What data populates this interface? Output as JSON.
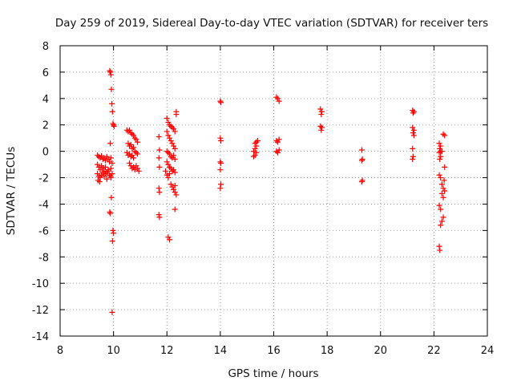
{
  "chart_data": {
    "type": "scatter",
    "title": "Day 259 of 2019, Sidereal Day-to-day VTEC variation (SDTVAR) for receiver ters",
    "xlabel": "GPS time / hours",
    "ylabel": "SDTVAR / TECUs",
    "xlim": [
      8,
      24
    ],
    "ylim": [
      -14,
      8
    ],
    "xticks": [
      8,
      10,
      12,
      14,
      16,
      18,
      20,
      22,
      24
    ],
    "yticks": [
      -14,
      -12,
      -10,
      -8,
      -6,
      -4,
      -2,
      0,
      2,
      4,
      6,
      8
    ],
    "grid": true,
    "marker": "+",
    "color": "#ff0000",
    "series": [
      {
        "name": "SDTVAR",
        "points": [
          [
            9.4,
            -0.3
          ],
          [
            9.45,
            -0.4
          ],
          [
            9.5,
            -0.5
          ],
          [
            9.55,
            -0.35
          ],
          [
            9.6,
            -0.6
          ],
          [
            9.65,
            -0.5
          ],
          [
            9.7,
            -0.7
          ],
          [
            9.75,
            -0.4
          ],
          [
            9.8,
            -0.6
          ],
          [
            9.85,
            -0.8
          ],
          [
            9.9,
            -0.5
          ],
          [
            9.95,
            -0.9
          ],
          [
            9.4,
            -1.0
          ],
          [
            9.45,
            -1.2
          ],
          [
            9.5,
            -1.4
          ],
          [
            9.55,
            -1.1
          ],
          [
            9.6,
            -1.3
          ],
          [
            9.65,
            -1.5
          ],
          [
            9.7,
            -1.2
          ],
          [
            9.75,
            -1.6
          ],
          [
            9.8,
            -1.4
          ],
          [
            9.85,
            -1.8
          ],
          [
            9.9,
            -1.3
          ],
          [
            9.95,
            -1.7
          ],
          [
            9.4,
            -1.7
          ],
          [
            9.45,
            -1.9
          ],
          [
            9.5,
            -2.0
          ],
          [
            9.55,
            -1.8
          ],
          [
            9.6,
            -1.6
          ],
          [
            9.65,
            -1.9
          ],
          [
            9.7,
            -1.7
          ],
          [
            9.75,
            -2.1
          ],
          [
            9.8,
            -1.5
          ],
          [
            9.9,
            -1.9
          ],
          [
            9.42,
            -2.2
          ],
          [
            9.48,
            -2.3
          ],
          [
            9.86,
            6.1
          ],
          [
            9.88,
            6.0
          ],
          [
            9.9,
            5.8
          ],
          [
            9.92,
            4.7
          ],
          [
            9.94,
            3.6
          ],
          [
            9.96,
            3.0
          ],
          [
            9.98,
            2.1
          ],
          [
            10.0,
            2.0
          ],
          [
            10.02,
            1.9
          ],
          [
            9.88,
            0.6
          ],
          [
            9.9,
            -2.0
          ],
          [
            9.92,
            -3.5
          ],
          [
            9.86,
            -4.6
          ],
          [
            9.88,
            -4.7
          ],
          [
            9.98,
            -6.0
          ],
          [
            10.0,
            -6.2
          ],
          [
            9.96,
            -6.8
          ],
          [
            9.95,
            -12.2
          ],
          [
            10.5,
            1.6
          ],
          [
            10.55,
            1.5
          ],
          [
            10.6,
            1.6
          ],
          [
            10.65,
            1.4
          ],
          [
            10.7,
            1.3
          ],
          [
            10.75,
            1.2
          ],
          [
            10.8,
            1.0
          ],
          [
            10.85,
            0.9
          ],
          [
            10.9,
            0.7
          ],
          [
            10.55,
            0.6
          ],
          [
            10.6,
            0.4
          ],
          [
            10.65,
            0.5
          ],
          [
            10.7,
            0.2
          ],
          [
            10.75,
            0.3
          ],
          [
            10.8,
            0.0
          ],
          [
            10.85,
            -0.1
          ],
          [
            10.9,
            -0.2
          ],
          [
            10.5,
            -0.1
          ],
          [
            10.55,
            -0.3
          ],
          [
            10.6,
            -0.2
          ],
          [
            10.65,
            -0.4
          ],
          [
            10.7,
            -0.3
          ],
          [
            10.75,
            -0.5
          ],
          [
            10.6,
            -0.9
          ],
          [
            10.65,
            -1.1
          ],
          [
            10.7,
            -1.3
          ],
          [
            10.75,
            -1.2
          ],
          [
            10.8,
            -1.4
          ],
          [
            10.85,
            -1.1
          ],
          [
            10.9,
            -1.3
          ],
          [
            10.95,
            -1.5
          ],
          [
            11.7,
            1.1
          ],
          [
            11.72,
            0.1
          ],
          [
            11.7,
            -0.5
          ],
          [
            11.72,
            -1.2
          ],
          [
            11.7,
            -2.8
          ],
          [
            11.72,
            -3.1
          ],
          [
            11.7,
            -4.8
          ],
          [
            11.72,
            -5.0
          ],
          [
            12.0,
            2.5
          ],
          [
            12.05,
            2.2
          ],
          [
            12.1,
            2.0
          ],
          [
            12.15,
            1.9
          ],
          [
            12.2,
            1.8
          ],
          [
            12.25,
            1.7
          ],
          [
            12.3,
            1.5
          ],
          [
            12.0,
            1.5
          ],
          [
            12.05,
            1.2
          ],
          [
            12.1,
            1.0
          ],
          [
            12.15,
            0.8
          ],
          [
            12.2,
            0.6
          ],
          [
            12.25,
            0.4
          ],
          [
            12.3,
            0.2
          ],
          [
            12.0,
            0.0
          ],
          [
            12.05,
            -0.1
          ],
          [
            12.1,
            -0.2
          ],
          [
            12.15,
            -0.4
          ],
          [
            12.2,
            -0.5
          ],
          [
            12.25,
            -0.3
          ],
          [
            12.3,
            -0.6
          ],
          [
            12.0,
            -0.8
          ],
          [
            12.05,
            -1.0
          ],
          [
            12.1,
            -1.2
          ],
          [
            12.15,
            -1.3
          ],
          [
            12.2,
            -1.5
          ],
          [
            12.25,
            -1.4
          ],
          [
            12.3,
            -1.6
          ],
          [
            11.95,
            -1.5
          ],
          [
            12.0,
            -1.8
          ],
          [
            12.05,
            -2.0
          ],
          [
            12.1,
            -1.7
          ],
          [
            12.15,
            -2.5
          ],
          [
            12.2,
            -2.7
          ],
          [
            12.25,
            -2.9
          ],
          [
            12.3,
            -3.1
          ],
          [
            12.35,
            -3.3
          ],
          [
            12.3,
            -2.6
          ],
          [
            12.35,
            2.8
          ],
          [
            12.35,
            3.0
          ],
          [
            12.3,
            -4.4
          ],
          [
            12.05,
            -6.5
          ],
          [
            12.1,
            -6.7
          ],
          [
            14.0,
            3.8
          ],
          [
            14.02,
            3.7
          ],
          [
            14.0,
            1.0
          ],
          [
            14.02,
            0.8
          ],
          [
            14.0,
            -0.8
          ],
          [
            14.02,
            -0.9
          ],
          [
            14.0,
            -1.4
          ],
          [
            14.02,
            -2.5
          ],
          [
            14.0,
            -2.8
          ],
          [
            15.3,
            0.6
          ],
          [
            15.35,
            0.7
          ],
          [
            15.4,
            0.8
          ],
          [
            15.35,
            0.4
          ],
          [
            15.3,
            0.2
          ],
          [
            15.25,
            0.0
          ],
          [
            15.35,
            -0.1
          ],
          [
            15.3,
            -0.3
          ],
          [
            15.25,
            -0.4
          ],
          [
            16.1,
            4.1
          ],
          [
            16.15,
            4.0
          ],
          [
            16.2,
            3.8
          ],
          [
            16.1,
            0.8
          ],
          [
            16.15,
            0.7
          ],
          [
            16.2,
            0.9
          ],
          [
            16.1,
            0.0
          ],
          [
            16.15,
            -0.1
          ],
          [
            16.2,
            0.1
          ],
          [
            17.75,
            3.2
          ],
          [
            17.8,
            3.0
          ],
          [
            17.78,
            2.8
          ],
          [
            17.75,
            1.9
          ],
          [
            17.8,
            1.8
          ],
          [
            17.78,
            1.6
          ],
          [
            19.3,
            0.1
          ],
          [
            19.32,
            -0.6
          ],
          [
            19.3,
            -0.7
          ],
          [
            19.32,
            -2.2
          ],
          [
            19.3,
            -2.3
          ],
          [
            21.2,
            3.1
          ],
          [
            21.25,
            3.0
          ],
          [
            21.22,
            2.9
          ],
          [
            21.2,
            1.8
          ],
          [
            21.25,
            1.6
          ],
          [
            21.22,
            1.4
          ],
          [
            21.25,
            1.2
          ],
          [
            21.2,
            0.2
          ],
          [
            21.22,
            -0.4
          ],
          [
            21.2,
            -0.6
          ],
          [
            22.2,
            0.6
          ],
          [
            22.25,
            0.4
          ],
          [
            22.22,
            0.2
          ],
          [
            22.25,
            0.0
          ],
          [
            22.2,
            -0.1
          ],
          [
            22.3,
            0.0
          ],
          [
            22.25,
            -0.4
          ],
          [
            22.22,
            -0.6
          ],
          [
            22.2,
            -1.8
          ],
          [
            22.25,
            -2.0
          ],
          [
            22.35,
            1.3
          ],
          [
            22.4,
            1.2
          ],
          [
            22.3,
            -2.5
          ],
          [
            22.35,
            -2.8
          ],
          [
            22.4,
            -3.0
          ],
          [
            22.3,
            -3.2
          ],
          [
            22.35,
            -3.5
          ],
          [
            22.2,
            -4.1
          ],
          [
            22.25,
            -4.4
          ],
          [
            22.35,
            -5.0
          ],
          [
            22.3,
            -5.3
          ],
          [
            22.25,
            -5.6
          ],
          [
            22.2,
            -7.2
          ],
          [
            22.22,
            -7.5
          ],
          [
            22.4,
            -1.2
          ],
          [
            22.38,
            -2.2
          ]
        ]
      }
    ]
  }
}
